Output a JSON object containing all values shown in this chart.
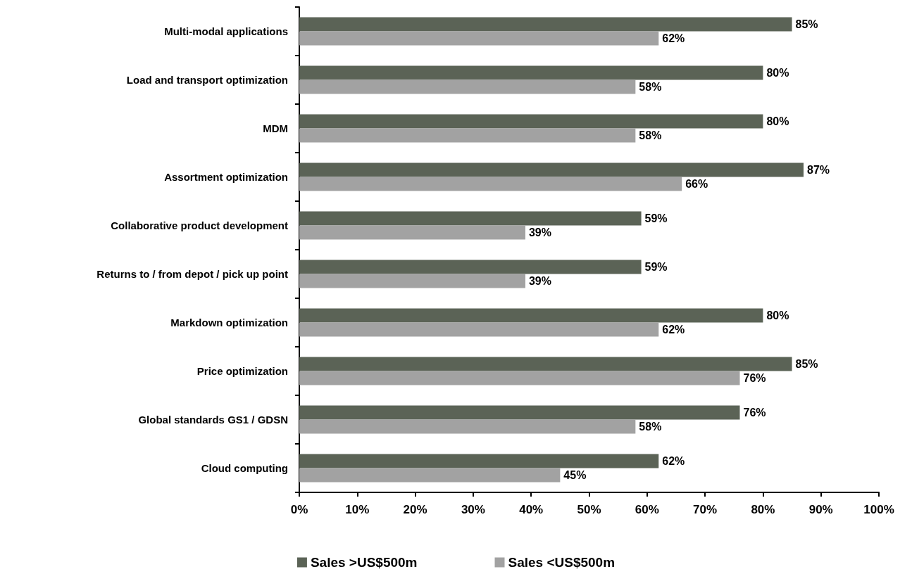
{
  "chart_data": {
    "type": "bar",
    "orientation": "horizontal",
    "categories": [
      "Multi-modal applications",
      "Load and transport optimization",
      "MDM",
      "Assortment optimization",
      "Collaborative product development",
      "Returns to / from depot / pick up point",
      "Markdown optimization",
      "Price optimization",
      "Global standards GS1 / GDSN",
      "Cloud computing"
    ],
    "series": [
      {
        "name": "Sales >US$500m",
        "color": "#5b6356",
        "values": [
          85,
          80,
          80,
          87,
          59,
          59,
          80,
          85,
          76,
          62
        ],
        "value_labels": [
          "85%",
          "80%",
          "80%",
          "87%",
          "59%",
          "59%",
          "80%",
          "85%",
          "76%",
          "62%"
        ]
      },
      {
        "name": "Sales <US$500m",
        "color": "#a2a2a2",
        "values": [
          62,
          58,
          58,
          66,
          39,
          39,
          62,
          76,
          58,
          45
        ],
        "value_labels": [
          "62%",
          "58%",
          "58%",
          "66%",
          "39%",
          "39%",
          "62%",
          "76%",
          "58%",
          "45%"
        ]
      }
    ],
    "xlim": [
      0,
      100
    ],
    "xticks": [
      {
        "value": 0,
        "label": "0%"
      },
      {
        "value": 10,
        "label": "10%"
      },
      {
        "value": 20,
        "label": "20%"
      },
      {
        "value": 30,
        "label": "30%"
      },
      {
        "value": 40,
        "label": "40%"
      },
      {
        "value": 50,
        "label": "50%"
      },
      {
        "value": 60,
        "label": "60%"
      },
      {
        "value": 70,
        "label": "70%"
      },
      {
        "value": 80,
        "label": "80%"
      },
      {
        "value": 90,
        "label": "90%"
      },
      {
        "value": 100,
        "label": "100%"
      }
    ],
    "grid": false,
    "legend": "bottom"
  }
}
